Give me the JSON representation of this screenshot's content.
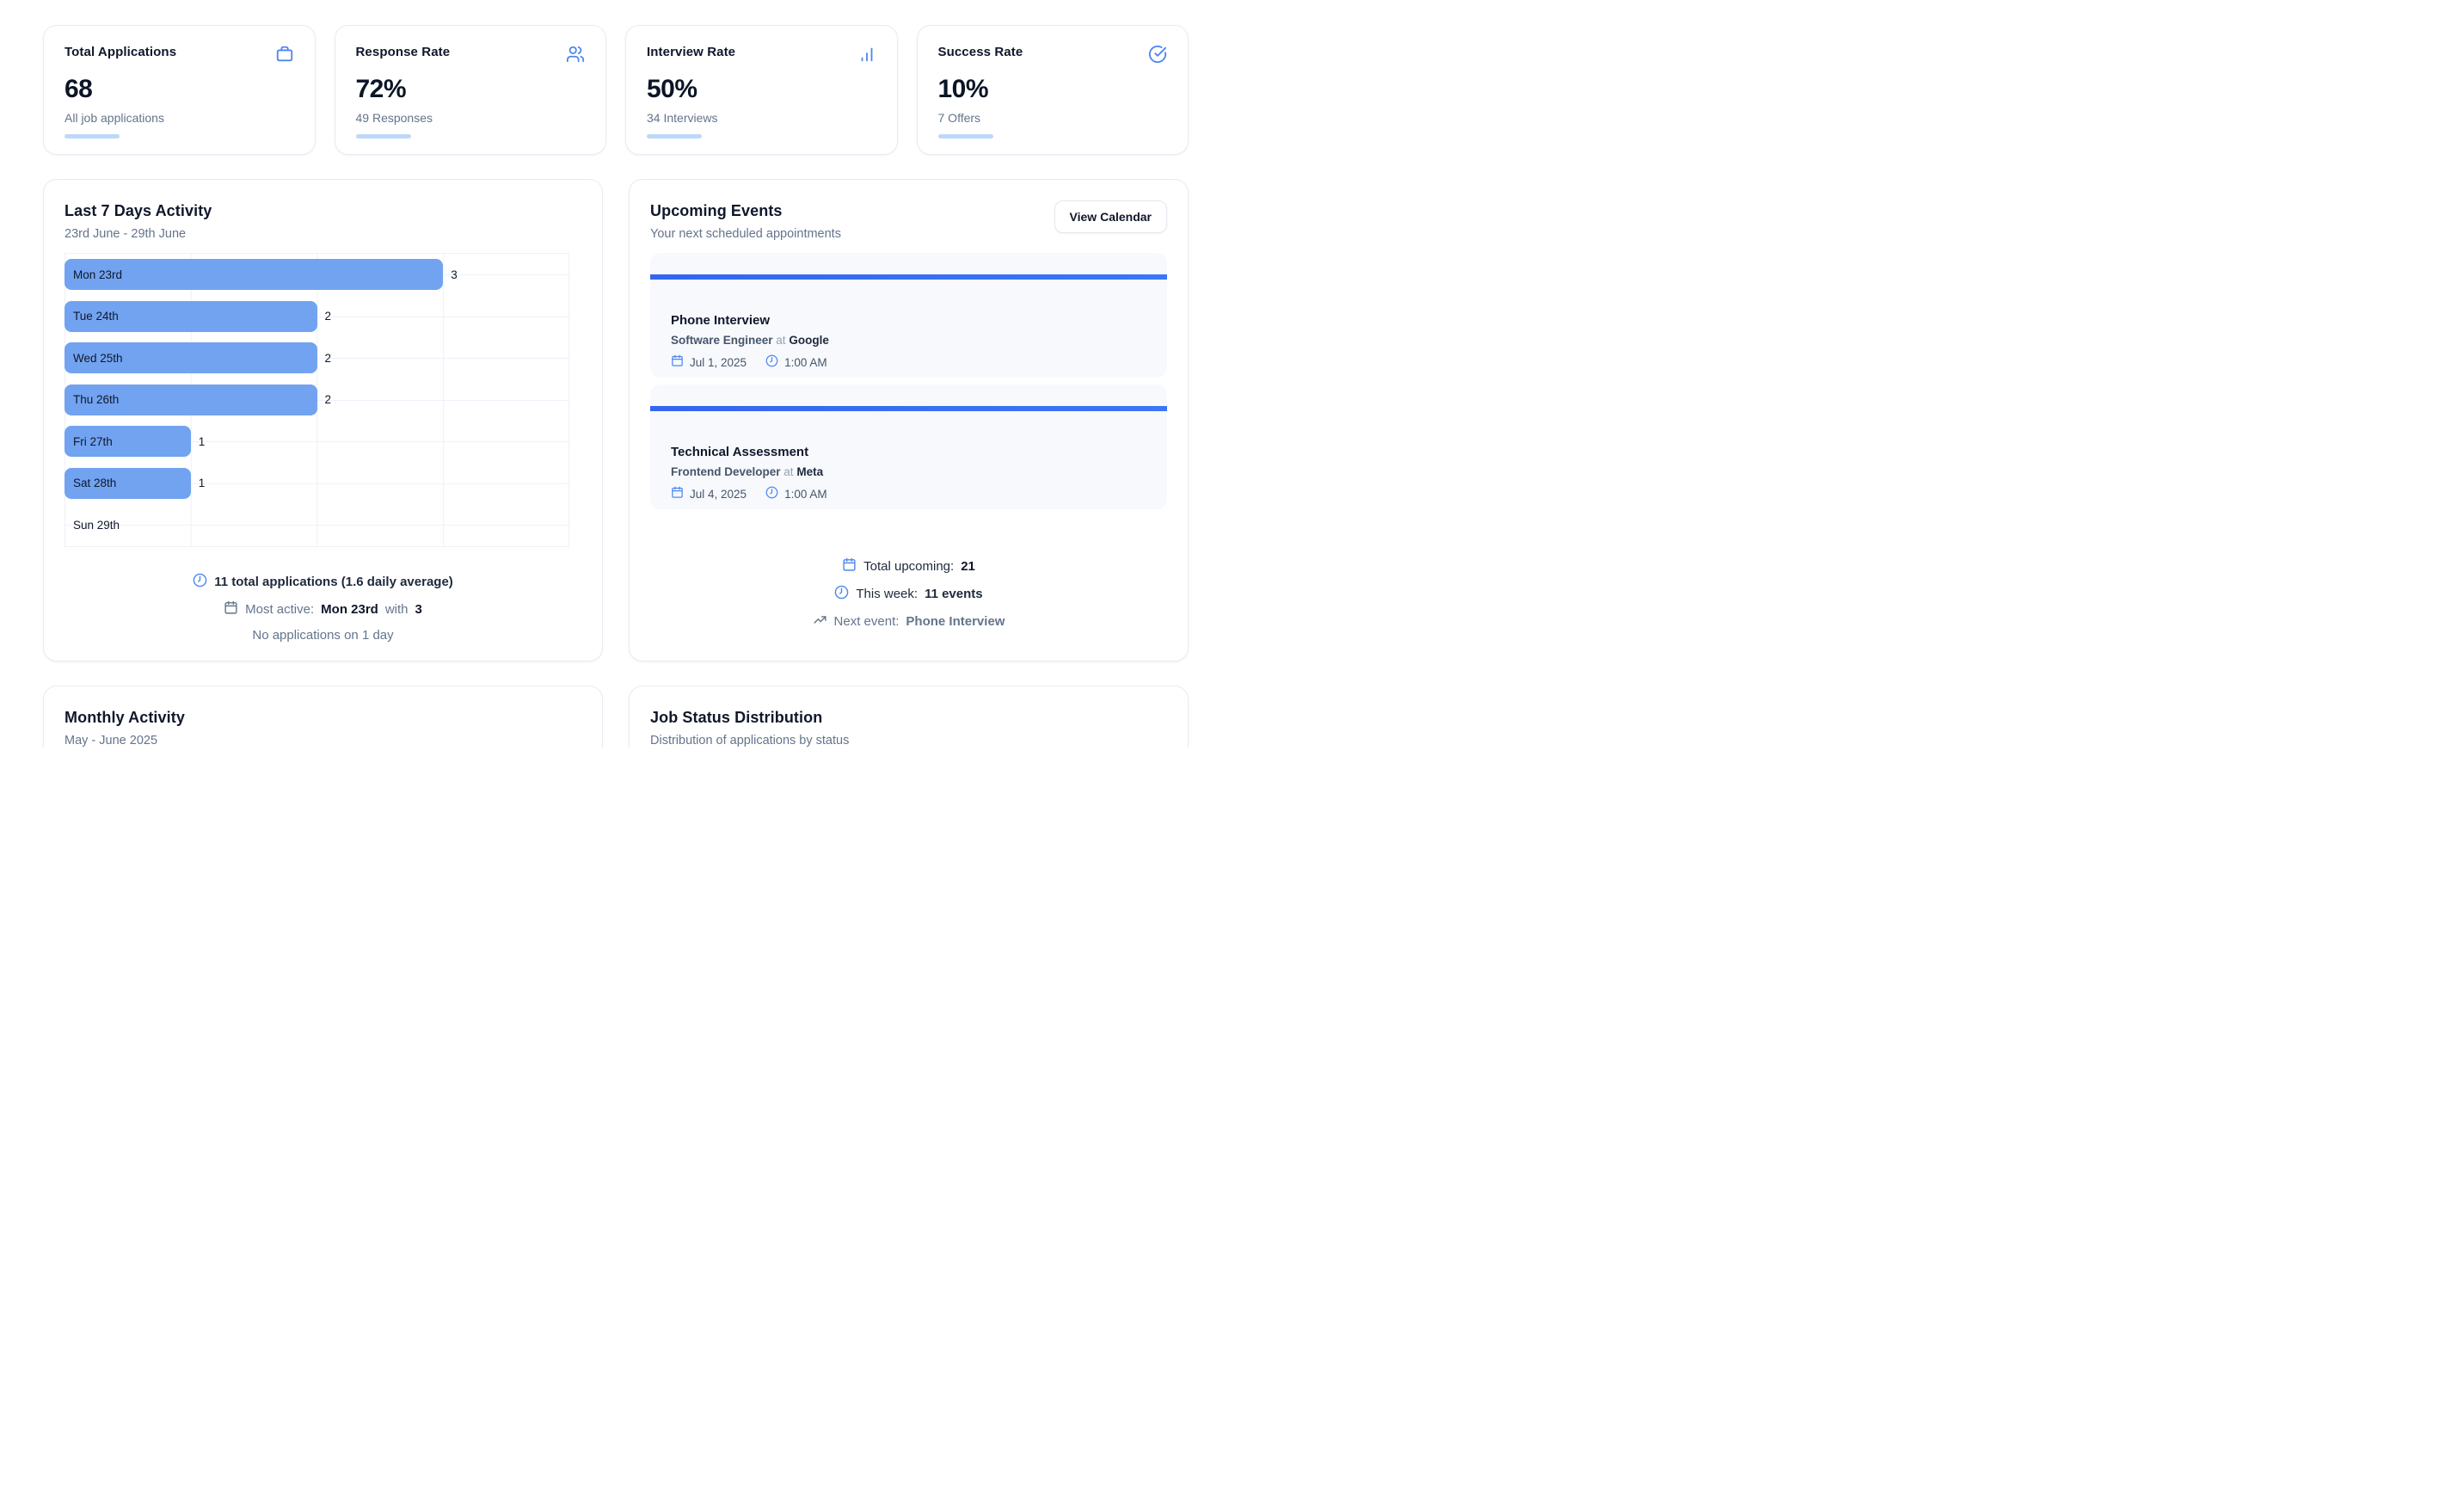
{
  "colors": {
    "accent": "#4e87ef",
    "bar_blue": "#72a3f1",
    "stripe_blue": "#3b76f6",
    "pale_blue": "#bdd8f8",
    "title_text": "#0f172a",
    "muted_text": "#64748b",
    "grid_line": "#edf1f8",
    "event_bg": "#f7f9fd"
  },
  "stats": [
    {
      "title": "Total Applications",
      "value": "68",
      "subtitle": "All job applications",
      "icon": "briefcase-icon"
    },
    {
      "title": "Response Rate",
      "value": "72%",
      "subtitle": "49 Responses",
      "icon": "users-icon"
    },
    {
      "title": "Interview Rate",
      "value": "50%",
      "subtitle": "34 Interviews",
      "icon": "bar-chart-icon"
    },
    {
      "title": "Success Rate",
      "value": "10%",
      "subtitle": "7 Offers",
      "icon": "check-circle-icon"
    }
  ],
  "activity": {
    "title": "Last 7 Days Activity",
    "subtitle": "23rd June - 29th June",
    "axis_max": 4,
    "days": [
      {
        "label": "Mon 23rd",
        "value": 3
      },
      {
        "label": "Tue 24th",
        "value": 2
      },
      {
        "label": "Wed 25th",
        "value": 2
      },
      {
        "label": "Thu 26th",
        "value": 2
      },
      {
        "label": "Fri 27th",
        "value": 1
      },
      {
        "label": "Sat 28th",
        "value": 1
      },
      {
        "label": "Sun 29th",
        "value": 0
      }
    ],
    "footer": {
      "line1": "11 total applications (1.6 daily average)",
      "line2_prefix": "Most active:",
      "line2_day": "Mon 23rd",
      "line2_with": "with",
      "line2_count": "3",
      "line3": "No applications on 1 day"
    }
  },
  "events": {
    "title": "Upcoming Events",
    "subtitle": "Your next scheduled appointments",
    "button": "View Calendar",
    "items": [
      {
        "title": "Phone Interview",
        "role": "Software Engineer",
        "at": "at",
        "company": "Google",
        "date": "Jul 1, 2025",
        "time": "1:00 AM"
      },
      {
        "title": "Technical Assessment",
        "role": "Frontend Developer",
        "at": "at",
        "company": "Meta",
        "date": "Jul 4, 2025",
        "time": "1:00 AM"
      }
    ],
    "footer": {
      "total_label": "Total upcoming:",
      "total_value": "21",
      "week_label": "This week:",
      "week_value": "11 events",
      "next_label": "Next event:",
      "next_value": "Phone Interview"
    }
  },
  "monthly": {
    "title": "Monthly Activity",
    "subtitle": "May - June 2025"
  },
  "status": {
    "title": "Job Status Distribution",
    "subtitle": "Distribution of applications by status"
  },
  "chart_data": {
    "type": "bar",
    "orientation": "horizontal",
    "title": "Last 7 Days Activity",
    "categories": [
      "Mon 23rd",
      "Tue 24th",
      "Wed 25th",
      "Thu 26th",
      "Fri 27th",
      "Sat 28th",
      "Sun 29th"
    ],
    "values": [
      3,
      2,
      2,
      2,
      1,
      1,
      0
    ],
    "xlabel": "",
    "ylabel": "",
    "xlim": [
      0,
      4
    ],
    "grid": true,
    "legend": false,
    "bar_color": "#72a3f1"
  }
}
